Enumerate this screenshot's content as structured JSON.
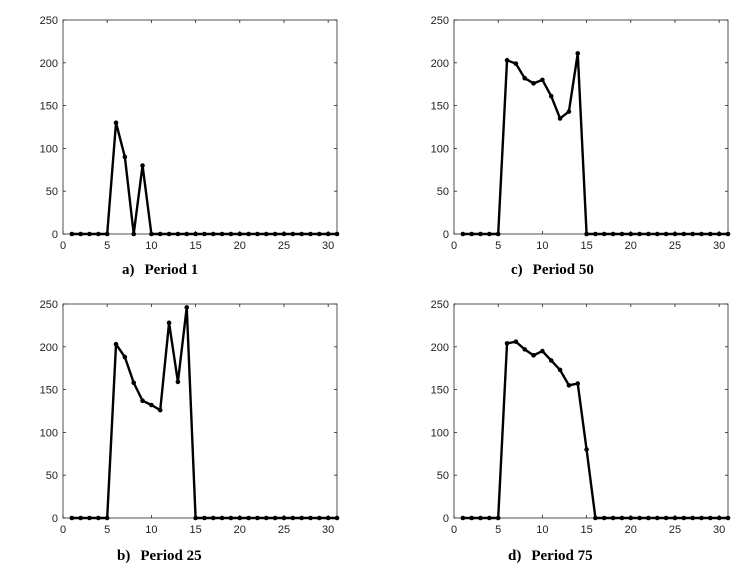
{
  "chart_data": [
    {
      "type": "line",
      "panel_label": "a)",
      "title": "Period 1",
      "xlim": [
        0,
        31
      ],
      "ylim": [
        0,
        250
      ],
      "xticks": [
        0,
        5,
        10,
        15,
        20,
        25,
        30
      ],
      "yticks": [
        0,
        50,
        100,
        150,
        200,
        250
      ],
      "grid": false,
      "x": [
        1,
        2,
        3,
        4,
        5,
        6,
        7,
        8,
        9,
        10,
        11,
        12,
        13,
        14,
        15,
        16,
        17,
        18,
        19,
        20,
        21,
        22,
        23,
        24,
        25,
        26,
        27,
        28,
        29,
        30,
        31
      ],
      "series": [
        {
          "values": [
            0,
            0,
            0,
            0,
            0,
            130,
            90,
            0,
            80,
            0,
            0,
            0,
            0,
            0,
            0,
            0,
            0,
            0,
            0,
            0,
            0,
            0,
            0,
            0,
            0,
            0,
            0,
            0,
            0,
            0,
            0
          ]
        }
      ]
    },
    {
      "type": "line",
      "panel_label": "c)",
      "title": "Period 50",
      "xlim": [
        0,
        31
      ],
      "ylim": [
        0,
        250
      ],
      "xticks": [
        0,
        5,
        10,
        15,
        20,
        25,
        30
      ],
      "yticks": [
        0,
        50,
        100,
        150,
        200,
        250
      ],
      "grid": false,
      "x": [
        1,
        2,
        3,
        4,
        5,
        6,
        7,
        8,
        9,
        10,
        11,
        12,
        13,
        14,
        15,
        16,
        17,
        18,
        19,
        20,
        21,
        22,
        23,
        24,
        25,
        26,
        27,
        28,
        29,
        30,
        31
      ],
      "series": [
        {
          "values": [
            0,
            0,
            0,
            0,
            0,
            203,
            199,
            182,
            176,
            180,
            161,
            135,
            143,
            211,
            0,
            0,
            0,
            0,
            0,
            0,
            0,
            0,
            0,
            0,
            0,
            0,
            0,
            0,
            0,
            0,
            0
          ]
        }
      ]
    },
    {
      "type": "line",
      "panel_label": "b)",
      "title": "Period 25",
      "xlim": [
        0,
        31
      ],
      "ylim": [
        0,
        250
      ],
      "xticks": [
        0,
        5,
        10,
        15,
        20,
        25,
        30
      ],
      "yticks": [
        0,
        50,
        100,
        150,
        200,
        250
      ],
      "grid": false,
      "x": [
        1,
        2,
        3,
        4,
        5,
        6,
        7,
        8,
        9,
        10,
        11,
        12,
        13,
        14,
        15,
        16,
        17,
        18,
        19,
        20,
        21,
        22,
        23,
        24,
        25,
        26,
        27,
        28,
        29,
        30,
        31
      ],
      "series": [
        {
          "values": [
            0,
            0,
            0,
            0,
            0,
            203,
            188,
            158,
            137,
            132,
            126,
            228,
            159,
            246,
            0,
            0,
            0,
            0,
            0,
            0,
            0,
            0,
            0,
            0,
            0,
            0,
            0,
            0,
            0,
            0,
            0
          ]
        }
      ]
    },
    {
      "type": "line",
      "panel_label": "d)",
      "title": "Period 75",
      "xlim": [
        0,
        31
      ],
      "ylim": [
        0,
        250
      ],
      "xticks": [
        0,
        5,
        10,
        15,
        20,
        25,
        30
      ],
      "yticks": [
        0,
        50,
        100,
        150,
        200,
        250
      ],
      "grid": false,
      "x": [
        1,
        2,
        3,
        4,
        5,
        6,
        7,
        8,
        9,
        10,
        11,
        12,
        13,
        14,
        15,
        16,
        17,
        18,
        19,
        20,
        21,
        22,
        23,
        24,
        25,
        26,
        27,
        28,
        29,
        30,
        31
      ],
      "series": [
        {
          "values": [
            0,
            0,
            0,
            0,
            0,
            204,
            206,
            197,
            190,
            195,
            184,
            173,
            155,
            157,
            80,
            0,
            0,
            0,
            0,
            0,
            0,
            0,
            0,
            0,
            0,
            0,
            0,
            0,
            0,
            0,
            0
          ]
        }
      ]
    }
  ]
}
